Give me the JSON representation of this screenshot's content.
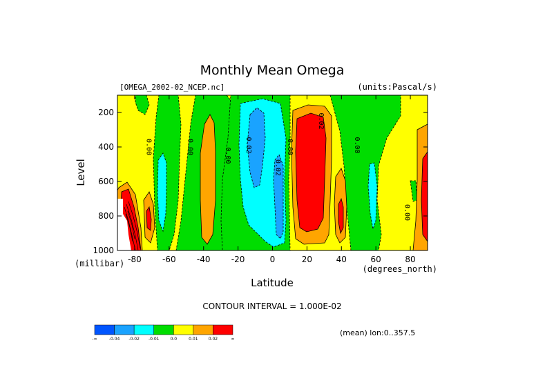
{
  "chart_data": {
    "type": "heatmap",
    "title": "Monthly Mean Omega",
    "dataset": "[OMEGA_2002-02_NCEP.nc]",
    "units": "(units:Pascal/s)",
    "xlabel": "Latitude",
    "xunits": "(degrees_north)",
    "ylabel": "Level",
    "yunits": "(millibar)",
    "xlim": [
      -90,
      90
    ],
    "ylim": [
      1000,
      100
    ],
    "x_ticks": [
      "-80",
      "-60",
      "-40",
      "-20",
      "0",
      "20",
      "40",
      "60",
      "80"
    ],
    "x_tick_values": [
      -80,
      -60,
      -40,
      -20,
      0,
      20,
      40,
      60,
      80
    ],
    "y_ticks": [
      "200",
      "400",
      "600",
      "800",
      "1000"
    ],
    "y_tick_values": [
      200,
      400,
      600,
      800,
      1000
    ],
    "contour_labels": [
      {
        "text": "0.00",
        "x": -73,
        "y": 400
      },
      {
        "text": "0.00",
        "x": -49,
        "y": 400
      },
      {
        "text": "0.00",
        "x": -27,
        "y": 450
      },
      {
        "text": "0.02",
        "x": -15,
        "y": 390
      },
      {
        "text": "0.02",
        "x": 2,
        "y": 520
      },
      {
        "text": "0.00",
        "x": 9,
        "y": 400
      },
      {
        "text": "0.02",
        "x": 27,
        "y": 250
      },
      {
        "text": "0.00",
        "x": 48,
        "y": 390
      },
      {
        "text": "0.00",
        "x": 77,
        "y": 780
      }
    ],
    "contour_interval": "CONTOUR INTERVAL = 1.000E-02",
    "mean_note": "(mean) lon:0..357.5",
    "colorbar": {
      "colors": [
        "#0055ff",
        "#1aa3ff",
        "#00ffff",
        "#00dd00",
        "#ffff00",
        "#ffa500",
        "#ff0000"
      ],
      "labels": [
        "-∞",
        "-0.04",
        "-0.02",
        "-0.01",
        "0.0",
        "0.01",
        "0.02",
        "∞"
      ]
    },
    "regions": [
      {
        "level": "positive-weak",
        "color": "#ffa500",
        "lat": [
          -45,
          -36
        ],
        "lev": [
          300,
          980
        ]
      },
      {
        "level": "negative-weak",
        "color": "#00ffff",
        "lat": [
          -70,
          -63
        ],
        "lev": [
          450,
          900
        ]
      },
      {
        "level": "negative-mid",
        "color": "#00ffff",
        "lat": [
          -21,
          9
        ],
        "lev": [
          150,
          970
        ]
      },
      {
        "level": "negative-strong",
        "color": "#1aa3ff",
        "lat": [
          -16,
          -8
        ],
        "lev": [
          200,
          650
        ]
      },
      {
        "level": "negative-strong",
        "color": "#1aa3ff",
        "lat": [
          0,
          8
        ],
        "lev": [
          400,
          950
        ]
      },
      {
        "level": "positive-strong",
        "color": "#ff0000",
        "lat": [
          13,
          29
        ],
        "lev": [
          200,
          900
        ]
      },
      {
        "level": "positive-weak",
        "color": "#ffa500",
        "lat": [
          10,
          35
        ],
        "lev": [
          160,
          960
        ]
      },
      {
        "level": "positive-weak",
        "color": "#ffa500",
        "lat": [
          36,
          45
        ],
        "lev": [
          550,
          980
        ]
      },
      {
        "level": "positive-strong",
        "color": "#ff0000",
        "lat": [
          38,
          42
        ],
        "lev": [
          730,
          900
        ]
      },
      {
        "level": "negative-weak",
        "color": "#00ffff",
        "lat": [
          54,
          58
        ],
        "lev": [
          520,
          840
        ]
      },
      {
        "level": "positive-strong",
        "color": "#ff0000",
        "lat": [
          86,
          90
        ],
        "lev": [
          450,
          950
        ]
      },
      {
        "level": "positive-strong",
        "color": "#ff0000",
        "lat": [
          -88,
          -77
        ],
        "lev": [
          650,
          1000
        ]
      }
    ]
  }
}
